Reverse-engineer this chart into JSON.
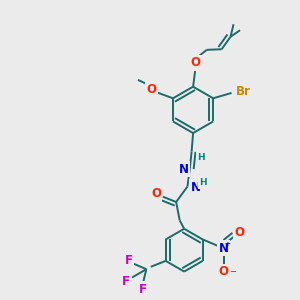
{
  "background_color": "#ebebeb",
  "bond_color": "#1a6b6b",
  "bond_width": 1.4,
  "atom_colors": {
    "N": "#0000dd",
    "O": "#ff2200",
    "Br": "#cc8800",
    "F": "#cc00cc",
    "H": "#008888"
  },
  "font_size": 8.5,
  "font_size_small": 6.5,
  "xlim": [
    0,
    10
  ],
  "ylim": [
    0,
    10
  ]
}
